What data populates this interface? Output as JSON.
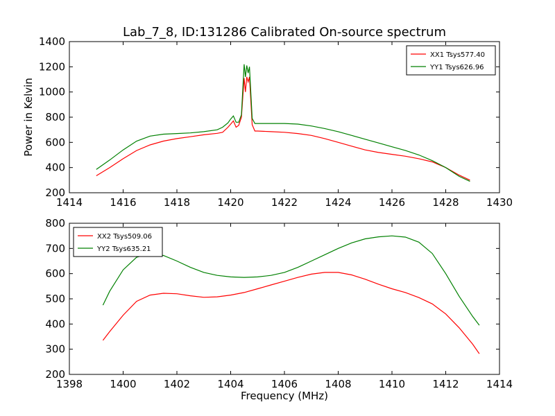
{
  "chart_data": [
    {
      "type": "line",
      "title": "Lab_7_8, ID:131286 Calibrated On-source spectrum",
      "xlabel": "",
      "ylabel": "Power in Kelvin",
      "xlim": [
        1414,
        1430
      ],
      "ylim": [
        200,
        1400
      ],
      "xticks": [
        "1414",
        "1416",
        "1418",
        "1420",
        "1422",
        "1424",
        "1426",
        "1428",
        "1430"
      ],
      "yticks": [
        "200",
        "400",
        "600",
        "800",
        "1000",
        "1200",
        "1400"
      ],
      "legend_position": "top-right",
      "grid": false,
      "series": [
        {
          "name": "XX1 Tsys577.40",
          "color": "#ff0000",
          "x": [
            1415.0,
            1415.5,
            1416.0,
            1416.5,
            1417.0,
            1417.5,
            1418.0,
            1418.5,
            1419.0,
            1419.5,
            1419.7,
            1419.9,
            1420.0,
            1420.1,
            1420.2,
            1420.3,
            1420.4,
            1420.5,
            1420.55,
            1420.6,
            1420.65,
            1420.7,
            1420.8,
            1420.9,
            1421.0,
            1421.5,
            1422.0,
            1422.5,
            1423.0,
            1423.5,
            1424.0,
            1424.5,
            1425.0,
            1425.5,
            1426.0,
            1426.5,
            1427.0,
            1427.5,
            1428.0,
            1428.5,
            1428.9
          ],
          "values": [
            335,
            400,
            470,
            535,
            580,
            610,
            630,
            645,
            660,
            672,
            680,
            720,
            745,
            770,
            720,
            735,
            800,
            1110,
            1000,
            1120,
            1080,
            1120,
            740,
            690,
            690,
            685,
            680,
            670,
            655,
            630,
            600,
            570,
            540,
            520,
            505,
            490,
            470,
            445,
            400,
            340,
            300
          ]
        },
        {
          "name": "YY1 Tsys626.96",
          "color": "#008000",
          "x": [
            1415.0,
            1415.5,
            1416.0,
            1416.5,
            1417.0,
            1417.5,
            1418.0,
            1418.5,
            1419.0,
            1419.5,
            1419.7,
            1419.9,
            1420.0,
            1420.1,
            1420.2,
            1420.3,
            1420.4,
            1420.5,
            1420.55,
            1420.6,
            1420.65,
            1420.7,
            1420.8,
            1420.9,
            1421.0,
            1421.5,
            1422.0,
            1422.5,
            1423.0,
            1423.5,
            1424.0,
            1424.5,
            1425.0,
            1425.5,
            1426.0,
            1426.5,
            1427.0,
            1427.5,
            1428.0,
            1428.5,
            1428.9
          ],
          "values": [
            385,
            460,
            540,
            610,
            650,
            665,
            670,
            675,
            685,
            700,
            720,
            755,
            785,
            810,
            760,
            760,
            820,
            1220,
            1120,
            1210,
            1150,
            1200,
            790,
            750,
            750,
            750,
            750,
            745,
            730,
            710,
            685,
            655,
            625,
            595,
            565,
            535,
            500,
            455,
            400,
            330,
            290
          ]
        }
      ]
    },
    {
      "type": "line",
      "title": "",
      "xlabel": "Frequency (MHz)",
      "ylabel": "",
      "xlim": [
        1398,
        1414
      ],
      "ylim": [
        200,
        800
      ],
      "xticks": [
        "1398",
        "1400",
        "1402",
        "1404",
        "1406",
        "1408",
        "1410",
        "1412",
        "1414"
      ],
      "yticks": [
        "200",
        "300",
        "400",
        "500",
        "600",
        "700",
        "800"
      ],
      "legend_position": "top-left",
      "grid": false,
      "series": [
        {
          "name": "XX2 Tsys509.06",
          "color": "#ff0000",
          "x": [
            1399.25,
            1399.5,
            1400.0,
            1400.5,
            1401.0,
            1401.5,
            1402.0,
            1402.5,
            1403.0,
            1403.5,
            1404.0,
            1404.5,
            1405.0,
            1405.5,
            1406.0,
            1406.5,
            1407.0,
            1407.5,
            1408.0,
            1408.5,
            1409.0,
            1409.5,
            1410.0,
            1410.5,
            1411.0,
            1411.5,
            1412.0,
            1412.5,
            1413.0,
            1413.25
          ],
          "values": [
            335,
            370,
            435,
            490,
            515,
            522,
            520,
            512,
            506,
            508,
            515,
            525,
            540,
            555,
            570,
            585,
            598,
            605,
            605,
            595,
            578,
            558,
            540,
            525,
            505,
            480,
            440,
            385,
            320,
            282
          ]
        },
        {
          "name": "YY2 Tsys635.21",
          "color": "#008000",
          "x": [
            1399.25,
            1399.5,
            1400.0,
            1400.5,
            1401.0,
            1401.5,
            1402.0,
            1402.5,
            1403.0,
            1403.5,
            1404.0,
            1404.5,
            1405.0,
            1405.5,
            1406.0,
            1406.5,
            1407.0,
            1407.5,
            1408.0,
            1408.5,
            1409.0,
            1409.5,
            1410.0,
            1410.5,
            1411.0,
            1411.5,
            1412.0,
            1412.5,
            1413.0,
            1413.25
          ],
          "values": [
            475,
            530,
            615,
            665,
            680,
            672,
            650,
            625,
            605,
            593,
            587,
            585,
            587,
            593,
            605,
            625,
            650,
            675,
            700,
            722,
            738,
            746,
            750,
            745,
            725,
            680,
            600,
            510,
            430,
            395
          ]
        }
      ]
    }
  ]
}
